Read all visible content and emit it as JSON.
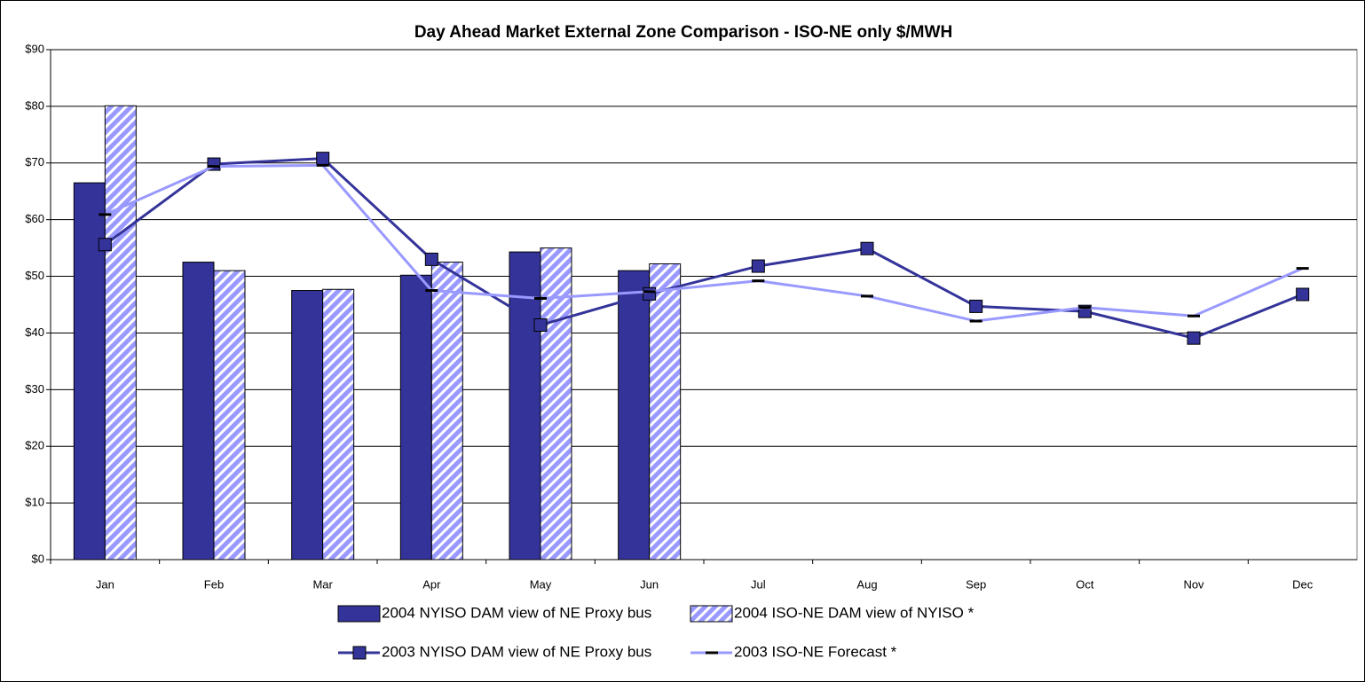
{
  "chart_data": {
    "type": "bar",
    "title": "Day Ahead Market External Zone Comparison - ISO-NE only $/MWH",
    "categories": [
      "Jan",
      "Feb",
      "Mar",
      "Apr",
      "May",
      "Jun",
      "Jul",
      "Aug",
      "Sep",
      "Oct",
      "Nov",
      "Dec"
    ],
    "series": [
      {
        "name": "2004 NYISO DAM view of NE Proxy bus",
        "type": "bar",
        "color": "#333399",
        "values": [
          66.5,
          52.5,
          47.5,
          50.2,
          54.3,
          51.0,
          null,
          null,
          null,
          null,
          null,
          null
        ]
      },
      {
        "name": "2004 ISO-NE DAM view of NYISO *",
        "type": "bar",
        "color": "#9999ff",
        "hatch": true,
        "values": [
          80.1,
          51.0,
          47.7,
          52.5,
          55.0,
          52.2,
          null,
          null,
          null,
          null,
          null,
          null
        ]
      },
      {
        "name": "2003 NYISO DAM view of NE Proxy bus",
        "type": "line",
        "color": "#333399",
        "marker": "square",
        "values": [
          55.6,
          69.8,
          70.8,
          53.0,
          41.4,
          46.9,
          51.8,
          54.9,
          44.7,
          43.8,
          39.1,
          46.8
        ]
      },
      {
        "name": "2003 ISO-NE Forecast *",
        "type": "line",
        "color": "#9999ff",
        "marker": "dash",
        "values": [
          60.9,
          69.4,
          69.6,
          47.5,
          46.1,
          47.3,
          49.2,
          46.5,
          42.1,
          44.5,
          43.0,
          51.4
        ]
      }
    ],
    "ylim": [
      0,
      90
    ],
    "yticks": [
      {
        "value": 0,
        "label": "$0"
      },
      {
        "value": 10,
        "label": "$10"
      },
      {
        "value": 20,
        "label": "$20"
      },
      {
        "value": 30,
        "label": "$30"
      },
      {
        "value": 40,
        "label": "$40"
      },
      {
        "value": 50,
        "label": "$50"
      },
      {
        "value": 60,
        "label": "$60"
      },
      {
        "value": 70,
        "label": "$70"
      },
      {
        "value": 80,
        "label": "$80"
      },
      {
        "value": 90,
        "label": "$90"
      }
    ],
    "grid": true,
    "legend": "bottom"
  }
}
